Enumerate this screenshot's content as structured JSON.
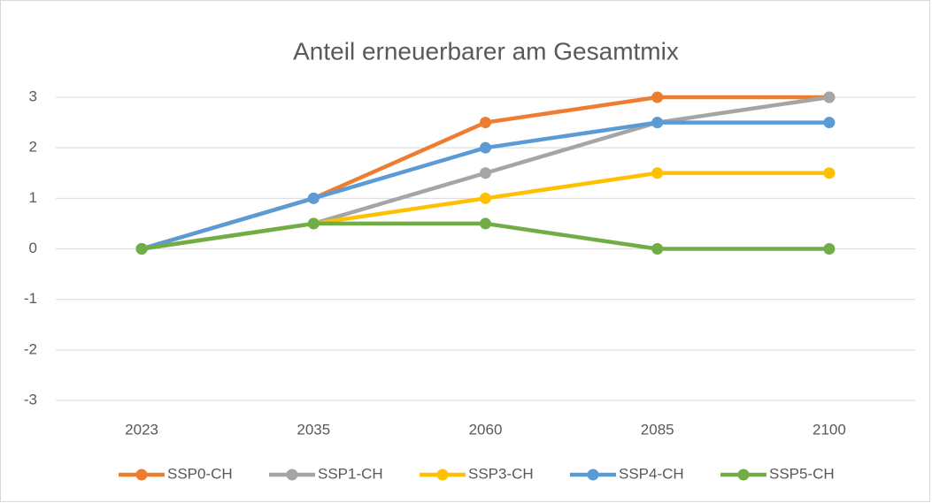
{
  "chart_data": {
    "type": "line",
    "title": "Anteil erneuerbarer am Gesamtmix",
    "categories": [
      "2023",
      "2035",
      "2060",
      "2085",
      "2100"
    ],
    "series": [
      {
        "name": "SSP0-CH",
        "color": "#ed7d31",
        "values": [
          0,
          1,
          2.5,
          3,
          3
        ]
      },
      {
        "name": "SSP1-CH",
        "color": "#a5a5a5",
        "values": [
          0,
          0.5,
          1.5,
          2.5,
          3
        ]
      },
      {
        "name": "SSP3-CH",
        "color": "#ffc000",
        "values": [
          0,
          0.5,
          1,
          1.5,
          1.5
        ]
      },
      {
        "name": "SSP4-CH",
        "color": "#5b9bd5",
        "values": [
          0,
          1,
          2,
          2.5,
          2.5
        ]
      },
      {
        "name": "SSP5-CH",
        "color": "#70ad47",
        "values": [
          0,
          0.5,
          0.5,
          0,
          0
        ]
      }
    ],
    "ylim": [
      -3,
      3
    ],
    "yticks": [
      -3,
      -2,
      -1,
      0,
      1,
      2,
      3
    ],
    "grid": true,
    "legend": "bottom"
  }
}
